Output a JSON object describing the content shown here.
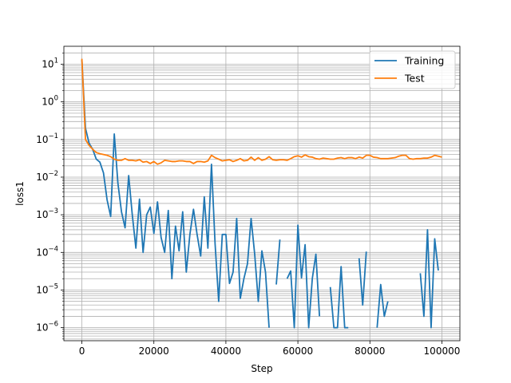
{
  "chart_data": {
    "type": "line",
    "title": "",
    "xlabel": "Step",
    "ylabel": "loss1",
    "xscale": "linear",
    "yscale": "log",
    "xlim": [
      -5000,
      105000
    ],
    "ylim": [
      4.5e-07,
      30
    ],
    "x_ticks": [
      0,
      20000,
      40000,
      60000,
      80000,
      100000
    ],
    "x_tick_labels": [
      "0",
      "20000",
      "40000",
      "60000",
      "80000",
      "100000"
    ],
    "y_ticks": [
      1e-06,
      1e-05,
      0.0001,
      0.001,
      0.01,
      0.1,
      1,
      10
    ],
    "y_tick_labels": [
      {
        "base": "10",
        "exp": "−6"
      },
      {
        "base": "10",
        "exp": "−5"
      },
      {
        "base": "10",
        "exp": "−4"
      },
      {
        "base": "10",
        "exp": "−3"
      },
      {
        "base": "10",
        "exp": "−2"
      },
      {
        "base": "10",
        "exp": "−1"
      },
      {
        "base": "10",
        "exp": "0"
      },
      {
        "base": "10",
        "exp": "1"
      }
    ],
    "grid": {
      "major": true,
      "minor_y": true
    },
    "legend": {
      "position": "top-right"
    },
    "series": [
      {
        "name": "Training",
        "color": "#1f77b4",
        "points": [
          [
            0,
            13
          ],
          [
            1000,
            0.2
          ],
          [
            2000,
            0.08
          ],
          [
            3000,
            0.055
          ],
          [
            4000,
            0.03
          ],
          [
            5000,
            0.025
          ],
          [
            6000,
            0.013
          ],
          [
            7000,
            0.0025
          ],
          [
            8000,
            0.0009
          ],
          [
            9000,
            0.14
          ],
          [
            10000,
            0.007
          ],
          [
            11000,
            0.0012
          ],
          [
            12000,
            0.00045
          ],
          [
            13000,
            0.011
          ],
          [
            14000,
            0.001
          ],
          [
            15000,
            0.00013
          ],
          [
            16000,
            0.0026
          ],
          [
            17000,
            0.0001
          ],
          [
            18000,
            0.001
          ],
          [
            19000,
            0.0016
          ],
          [
            20000,
            0.00032
          ],
          [
            21000,
            0.0022
          ],
          [
            22000,
            0.00025
          ],
          [
            23000,
            0.0001
          ],
          [
            24000,
            0.0013
          ],
          [
            25000,
            2e-05
          ],
          [
            26000,
            0.0005
          ],
          [
            27000,
            0.00011
          ],
          [
            28000,
            0.0012
          ],
          [
            29000,
            3e-05
          ],
          [
            30000,
            0.0003
          ],
          [
            31000,
            0.0014
          ],
          [
            32000,
            0.0003
          ],
          [
            33000,
            8e-05
          ],
          [
            34000,
            0.003
          ],
          [
            35000,
            0.00013
          ],
          [
            36000,
            0.022
          ],
          [
            37000,
            0.00017
          ],
          [
            38000,
            5e-06
          ],
          [
            39000,
            0.0003
          ],
          [
            40000,
            0.0003
          ],
          [
            41000,
            1.5e-05
          ],
          [
            42000,
            3e-05
          ],
          [
            43000,
            0.0008
          ],
          [
            44000,
            6e-06
          ],
          [
            45000,
            2e-05
          ],
          [
            46000,
            5e-05
          ],
          [
            47000,
            0.0008
          ],
          [
            48000,
            9e-05
          ],
          [
            49000,
            5e-06
          ],
          [
            50000,
            0.00011
          ],
          [
            51000,
            3e-05
          ],
          [
            52000,
            1e-06
          ],
          null,
          [
            54000,
            1.4e-05
          ],
          [
            55000,
            0.00022
          ],
          null,
          [
            57000,
            2e-05
          ],
          [
            58000,
            3.2e-05
          ],
          [
            59000,
            1e-06
          ],
          [
            60000,
            0.00053
          ],
          [
            61000,
            2.1e-05
          ],
          [
            62000,
            0.00016
          ],
          [
            63000,
            1e-06
          ],
          [
            64000,
            2e-05
          ],
          [
            65000,
            9e-05
          ],
          [
            66000,
            2e-06
          ],
          null,
          [
            69000,
            1.2e-05
          ],
          [
            70000,
            1e-06
          ],
          [
            71000,
            1e-06
          ],
          [
            72000,
            4.2e-05
          ],
          [
            73000,
            1e-06
          ],
          [
            74000,
            1e-06
          ],
          null,
          [
            77000,
            7e-05
          ],
          [
            78000,
            4e-06
          ],
          [
            79000,
            0.000105
          ],
          null,
          [
            82000,
            1e-06
          ],
          [
            83000,
            1.4e-05
          ],
          [
            84000,
            2e-06
          ],
          [
            85000,
            5e-06
          ],
          null,
          [
            94000,
            2.8e-05
          ],
          [
            95000,
            2e-06
          ],
          [
            96000,
            0.0004
          ],
          [
            97000,
            1e-06
          ],
          [
            98000,
            0.00023
          ],
          [
            99000,
            3.3e-05
          ]
        ]
      },
      {
        "name": "Test",
        "color": "#ff7f0e",
        "points": [
          [
            0,
            14
          ],
          [
            1000,
            0.1
          ],
          [
            2000,
            0.07
          ],
          [
            3000,
            0.055
          ],
          [
            4000,
            0.045
          ],
          [
            5000,
            0.042
          ],
          [
            6000,
            0.04
          ],
          [
            7000,
            0.038
          ],
          [
            8000,
            0.035
          ],
          [
            9000,
            0.03
          ],
          [
            10000,
            0.028
          ],
          [
            11000,
            0.028
          ],
          [
            12000,
            0.031
          ],
          [
            13000,
            0.028
          ],
          [
            14000,
            0.028
          ],
          [
            15000,
            0.027
          ],
          [
            16000,
            0.029
          ],
          [
            17000,
            0.025
          ],
          [
            18000,
            0.026
          ],
          [
            19000,
            0.023
          ],
          [
            20000,
            0.026
          ],
          [
            21000,
            0.022
          ],
          [
            22000,
            0.024
          ],
          [
            23000,
            0.028
          ],
          [
            24000,
            0.027
          ],
          [
            25000,
            0.026
          ],
          [
            26000,
            0.026
          ],
          [
            27000,
            0.027
          ],
          [
            28000,
            0.027
          ],
          [
            29000,
            0.026
          ],
          [
            30000,
            0.026
          ],
          [
            31000,
            0.023
          ],
          [
            32000,
            0.026
          ],
          [
            33000,
            0.026
          ],
          [
            34000,
            0.025
          ],
          [
            35000,
            0.027
          ],
          [
            36000,
            0.038
          ],
          [
            37000,
            0.033
          ],
          [
            38000,
            0.03
          ],
          [
            39000,
            0.027
          ],
          [
            40000,
            0.028
          ],
          [
            41000,
            0.029
          ],
          [
            42000,
            0.026
          ],
          [
            43000,
            0.028
          ],
          [
            44000,
            0.031
          ],
          [
            45000,
            0.027
          ],
          [
            46000,
            0.028
          ],
          [
            47000,
            0.034
          ],
          [
            48000,
            0.028
          ],
          [
            49000,
            0.033
          ],
          [
            50000,
            0.028
          ],
          [
            51000,
            0.03
          ],
          [
            52000,
            0.035
          ],
          [
            53000,
            0.029
          ],
          [
            54000,
            0.028
          ],
          [
            55000,
            0.029
          ],
          [
            56000,
            0.029
          ],
          [
            57000,
            0.028
          ],
          [
            58000,
            0.031
          ],
          [
            59000,
            0.035
          ],
          [
            60000,
            0.037
          ],
          [
            61000,
            0.034
          ],
          [
            62000,
            0.039
          ],
          [
            63000,
            0.035
          ],
          [
            64000,
            0.034
          ],
          [
            65000,
            0.031
          ],
          [
            66000,
            0.03
          ],
          [
            67000,
            0.032
          ],
          [
            68000,
            0.031
          ],
          [
            69000,
            0.03
          ],
          [
            70000,
            0.03
          ],
          [
            71000,
            0.032
          ],
          [
            72000,
            0.033
          ],
          [
            73000,
            0.031
          ],
          [
            74000,
            0.033
          ],
          [
            75000,
            0.033
          ],
          [
            76000,
            0.031
          ],
          [
            77000,
            0.034
          ],
          [
            78000,
            0.032
          ],
          [
            79000,
            0.038
          ],
          [
            80000,
            0.038
          ],
          [
            81000,
            0.034
          ],
          [
            82000,
            0.033
          ],
          [
            83000,
            0.031
          ],
          [
            84000,
            0.031
          ],
          [
            85000,
            0.031
          ],
          [
            86000,
            0.032
          ],
          [
            87000,
            0.033
          ],
          [
            88000,
            0.036
          ],
          [
            89000,
            0.038
          ],
          [
            90000,
            0.038
          ],
          [
            91000,
            0.031
          ],
          [
            92000,
            0.03
          ],
          [
            93000,
            0.031
          ],
          [
            94000,
            0.031
          ],
          [
            95000,
            0.032
          ],
          [
            96000,
            0.032
          ],
          [
            97000,
            0.034
          ],
          [
            98000,
            0.038
          ],
          [
            99000,
            0.036
          ],
          [
            100000,
            0.034
          ]
        ]
      }
    ]
  }
}
